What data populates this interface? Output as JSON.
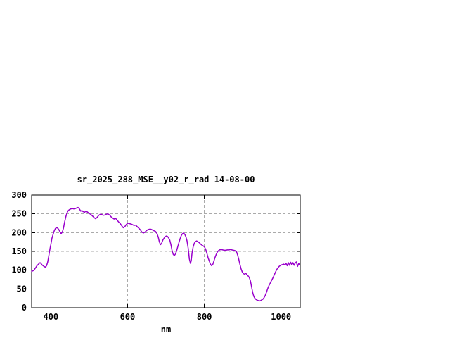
{
  "window": {
    "background": "#ffffff"
  },
  "chart_data": {
    "type": "line",
    "title": "sr_2025_288_MSE__y02_r_rad 14-08-00",
    "xlabel": "nm",
    "ylabel": "",
    "xlim": [
      350,
      1050
    ],
    "ylim": [
      0,
      300
    ],
    "x_ticks": [
      400,
      600,
      800,
      1000
    ],
    "y_ticks": [
      0,
      50,
      100,
      150,
      200,
      250,
      300
    ],
    "grid": true,
    "legend_position": "none",
    "colors": {
      "line": "#9900cc",
      "grid": "#aaaaaa",
      "border": "#000000",
      "text": "#000000",
      "background": "#ffffff"
    },
    "series": [
      {
        "points": [
          [
            350,
            97
          ],
          [
            353,
            98
          ],
          [
            356,
            100
          ],
          [
            360,
            106
          ],
          [
            364,
            112
          ],
          [
            368,
            116
          ],
          [
            372,
            120
          ],
          [
            375,
            117
          ],
          [
            378,
            113
          ],
          [
            382,
            110
          ],
          [
            386,
            108
          ],
          [
            389,
            112
          ],
          [
            392,
            122
          ],
          [
            395,
            140
          ],
          [
            398,
            158
          ],
          [
            400,
            168
          ],
          [
            403,
            185
          ],
          [
            406,
            196
          ],
          [
            409,
            205
          ],
          [
            412,
            211
          ],
          [
            415,
            213
          ],
          [
            418,
            212
          ],
          [
            421,
            208
          ],
          [
            424,
            202
          ],
          [
            427,
            197
          ],
          [
            430,
            202
          ],
          [
            433,
            212
          ],
          [
            436,
            228
          ],
          [
            439,
            242
          ],
          [
            442,
            252
          ],
          [
            445,
            258
          ],
          [
            448,
            261
          ],
          [
            452,
            263
          ],
          [
            456,
            264
          ],
          [
            460,
            263
          ],
          [
            464,
            264
          ],
          [
            468,
            266
          ],
          [
            471,
            267
          ],
          [
            474,
            264
          ],
          [
            478,
            257
          ],
          [
            481,
            259
          ],
          [
            484,
            256
          ],
          [
            488,
            254
          ],
          [
            491,
            257
          ],
          [
            494,
            256
          ],
          [
            498,
            253
          ],
          [
            502,
            250
          ],
          [
            506,
            247
          ],
          [
            510,
            243
          ],
          [
            514,
            239
          ],
          [
            517,
            237
          ],
          [
            521,
            241
          ],
          [
            525,
            246
          ],
          [
            529,
            249
          ],
          [
            533,
            248
          ],
          [
            537,
            246
          ],
          [
            541,
            247
          ],
          [
            545,
            249
          ],
          [
            549,
            250
          ],
          [
            553,
            247
          ],
          [
            557,
            242
          ],
          [
            561,
            239
          ],
          [
            565,
            236
          ],
          [
            569,
            238
          ],
          [
            573,
            233
          ],
          [
            577,
            228
          ],
          [
            581,
            224
          ],
          [
            585,
            218
          ],
          [
            589,
            213
          ],
          [
            593,
            216
          ],
          [
            597,
            222
          ],
          [
            601,
            225
          ],
          [
            605,
            224
          ],
          [
            609,
            223
          ],
          [
            613,
            221
          ],
          [
            617,
            219
          ],
          [
            621,
            220
          ],
          [
            625,
            216
          ],
          [
            629,
            212
          ],
          [
            633,
            208
          ],
          [
            637,
            202
          ],
          [
            641,
            199
          ],
          [
            645,
            201
          ],
          [
            649,
            205
          ],
          [
            653,
            208
          ],
          [
            657,
            209
          ],
          [
            661,
            209
          ],
          [
            665,
            207
          ],
          [
            669,
            205
          ],
          [
            673,
            203
          ],
          [
            677,
            197
          ],
          [
            680,
            188
          ],
          [
            683,
            175
          ],
          [
            686,
            168
          ],
          [
            689,
            172
          ],
          [
            692,
            180
          ],
          [
            695,
            185
          ],
          [
            698,
            189
          ],
          [
            701,
            191
          ],
          [
            704,
            190
          ],
          [
            707,
            186
          ],
          [
            710,
            180
          ],
          [
            713,
            168
          ],
          [
            716,
            152
          ],
          [
            719,
            142
          ],
          [
            722,
            139
          ],
          [
            725,
            143
          ],
          [
            728,
            152
          ],
          [
            731,
            163
          ],
          [
            734,
            174
          ],
          [
            737,
            184
          ],
          [
            740,
            192
          ],
          [
            743,
            197
          ],
          [
            746,
            199
          ],
          [
            749,
            196
          ],
          [
            752,
            189
          ],
          [
            755,
            178
          ],
          [
            758,
            158
          ],
          [
            761,
            130
          ],
          [
            764,
            118
          ],
          [
            766,
            125
          ],
          [
            768,
            145
          ],
          [
            771,
            162
          ],
          [
            774,
            172
          ],
          [
            777,
            176
          ],
          [
            780,
            178
          ],
          [
            783,
            176
          ],
          [
            786,
            174
          ],
          [
            789,
            171
          ],
          [
            792,
            168
          ],
          [
            795,
            166
          ],
          [
            798,
            164
          ],
          [
            801,
            161
          ],
          [
            804,
            154
          ],
          [
            807,
            144
          ],
          [
            810,
            133
          ],
          [
            813,
            124
          ],
          [
            816,
            116
          ],
          [
            819,
            112
          ],
          [
            822,
            115
          ],
          [
            825,
            124
          ],
          [
            828,
            134
          ],
          [
            831,
            142
          ],
          [
            834,
            148
          ],
          [
            837,
            152
          ],
          [
            840,
            154
          ],
          [
            844,
            155
          ],
          [
            848,
            154
          ],
          [
            852,
            153
          ],
          [
            856,
            153
          ],
          [
            860,
            154
          ],
          [
            864,
            154
          ],
          [
            868,
            155
          ],
          [
            872,
            154
          ],
          [
            876,
            153
          ],
          [
            880,
            152
          ],
          [
            884,
            149
          ],
          [
            887,
            140
          ],
          [
            890,
            128
          ],
          [
            893,
            115
          ],
          [
            896,
            103
          ],
          [
            899,
            95
          ],
          [
            902,
            91
          ],
          [
            905,
            89
          ],
          [
            908,
            92
          ],
          [
            911,
            88
          ],
          [
            914,
            85
          ],
          [
            917,
            81
          ],
          [
            920,
            72
          ],
          [
            923,
            57
          ],
          [
            926,
            41
          ],
          [
            929,
            30
          ],
          [
            932,
            25
          ],
          [
            935,
            22
          ],
          [
            938,
            20
          ],
          [
            941,
            19
          ],
          [
            944,
            18
          ],
          [
            947,
            19
          ],
          [
            950,
            21
          ],
          [
            953,
            23
          ],
          [
            956,
            27
          ],
          [
            959,
            33
          ],
          [
            962,
            41
          ],
          [
            965,
            50
          ],
          [
            968,
            58
          ],
          [
            971,
            64
          ],
          [
            974,
            70
          ],
          [
            977,
            76
          ],
          [
            980,
            82
          ],
          [
            983,
            89
          ],
          [
            986,
            96
          ],
          [
            989,
            102
          ],
          [
            992,
            106
          ],
          [
            995,
            110
          ],
          [
            998,
            112
          ],
          [
            1001,
            114
          ],
          [
            1004,
            115
          ],
          [
            1007,
            116
          ],
          [
            1010,
            114
          ],
          [
            1013,
            118
          ],
          [
            1016,
            112
          ],
          [
            1019,
            120
          ],
          [
            1022,
            113
          ],
          [
            1025,
            121
          ],
          [
            1028,
            114
          ],
          [
            1031,
            120
          ],
          [
            1034,
            113
          ],
          [
            1037,
            119
          ],
          [
            1040,
            122
          ],
          [
            1043,
            110
          ],
          [
            1046,
            118
          ],
          [
            1048,
            115
          ]
        ]
      }
    ]
  }
}
